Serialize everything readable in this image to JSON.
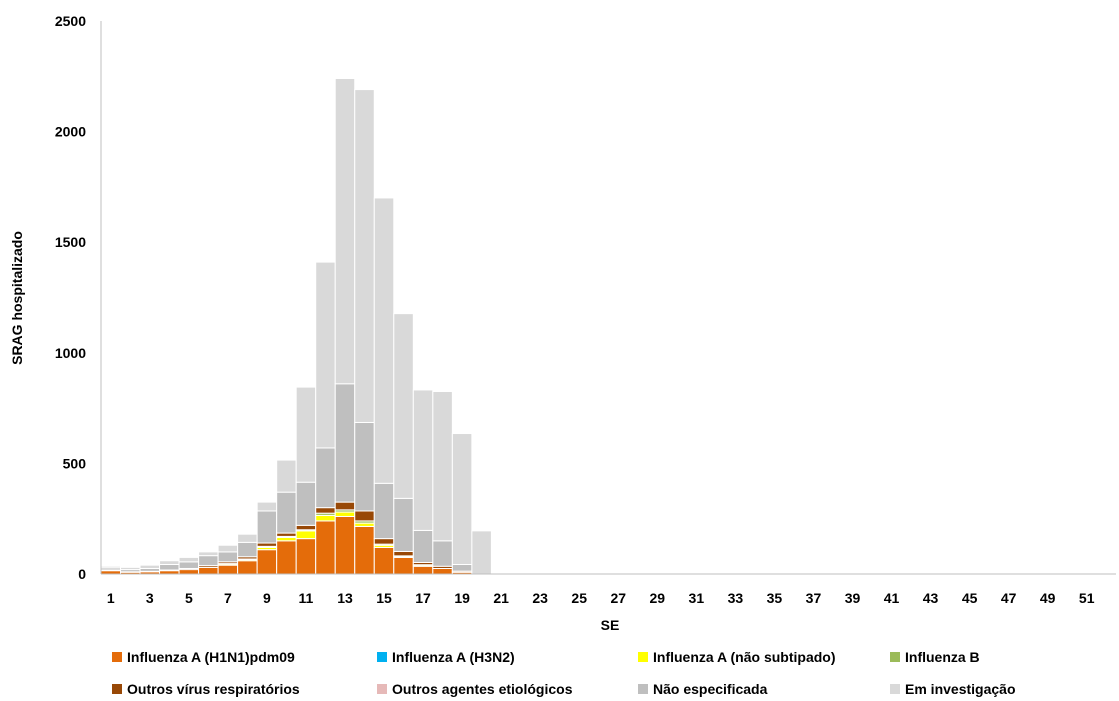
{
  "chart_data": {
    "type": "bar",
    "stacked": true,
    "xlabel": "SE",
    "ylabel": "SRAG hospitalizado",
    "ylim": [
      0,
      2500
    ],
    "yticks": [
      0,
      500,
      1000,
      1500,
      2000,
      2500
    ],
    "x": [
      1,
      2,
      3,
      4,
      5,
      6,
      7,
      8,
      9,
      10,
      11,
      12,
      13,
      14,
      15,
      16,
      17,
      18,
      19,
      20,
      21,
      22,
      23,
      24,
      25,
      26,
      27,
      28,
      29,
      30,
      31,
      32,
      33,
      34,
      35,
      36,
      37,
      38,
      39,
      40,
      41,
      42,
      43,
      44,
      45,
      46,
      47,
      48,
      49,
      50,
      51,
      52
    ],
    "xtick_labels": [
      "1",
      "3",
      "5",
      "7",
      "9",
      "11",
      "13",
      "15",
      "17",
      "19",
      "21",
      "23",
      "25",
      "27",
      "29",
      "31",
      "33",
      "35",
      "37",
      "39",
      "41",
      "43",
      "45",
      "47",
      "49",
      "51"
    ],
    "grid": false,
    "legend_position": "bottom",
    "colors": [
      "#E46C0A",
      "#00B0F0",
      "#FFFF00",
      "#9BBB59",
      "#984806",
      "#E6B9B8",
      "#BFBFBF",
      "#D9D9D9"
    ],
    "series": [
      {
        "name": "Influenza A (H1N1)pdm09",
        "values": [
          15,
          8,
          10,
          15,
          20,
          30,
          40,
          60,
          110,
          150,
          160,
          240,
          260,
          215,
          120,
          75,
          35,
          25,
          8,
          0,
          0,
          0,
          0,
          0,
          0,
          0,
          0,
          0,
          0,
          0,
          0,
          0,
          0,
          0,
          0,
          0,
          0,
          0,
          0,
          0,
          0,
          0,
          0,
          0,
          0,
          0,
          0,
          0,
          0,
          0,
          0,
          0
        ]
      },
      {
        "name": "Influenza A (H3N2)",
        "values": [
          0,
          0,
          0,
          0,
          0,
          0,
          0,
          0,
          0,
          0,
          0,
          0,
          0,
          0,
          0,
          0,
          0,
          0,
          0,
          0,
          0,
          0,
          0,
          0,
          0,
          0,
          0,
          0,
          0,
          0,
          0,
          0,
          0,
          0,
          0,
          0,
          0,
          0,
          0,
          0,
          0,
          0,
          0,
          0,
          0,
          0,
          0,
          0,
          0,
          0,
          0,
          0
        ]
      },
      {
        "name": "Influenza A (não subtipado)",
        "values": [
          0,
          0,
          0,
          0,
          0,
          0,
          5,
          5,
          10,
          15,
          35,
          25,
          20,
          15,
          10,
          5,
          5,
          0,
          0,
          0,
          0,
          0,
          0,
          0,
          0,
          0,
          0,
          0,
          0,
          0,
          0,
          0,
          0,
          0,
          0,
          0,
          0,
          0,
          0,
          0,
          0,
          0,
          0,
          0,
          0,
          0,
          0,
          0,
          0,
          0,
          0,
          0
        ]
      },
      {
        "name": "Influenza B",
        "values": [
          0,
          0,
          0,
          0,
          0,
          0,
          2,
          3,
          5,
          5,
          5,
          10,
          10,
          10,
          5,
          2,
          2,
          0,
          0,
          0,
          0,
          0,
          0,
          0,
          0,
          0,
          0,
          0,
          0,
          0,
          0,
          0,
          0,
          0,
          0,
          0,
          0,
          0,
          0,
          0,
          0,
          0,
          0,
          0,
          0,
          0,
          0,
          0,
          0,
          0,
          0,
          0
        ]
      },
      {
        "name": "Outros vírus respiratórios",
        "values": [
          3,
          2,
          2,
          3,
          5,
          8,
          8,
          10,
          15,
          15,
          20,
          25,
          35,
          45,
          25,
          20,
          10,
          10,
          5,
          0,
          0,
          0,
          0,
          0,
          0,
          0,
          0,
          0,
          0,
          0,
          0,
          0,
          0,
          0,
          0,
          0,
          0,
          0,
          0,
          0,
          0,
          0,
          0,
          0,
          0,
          0,
          0,
          0,
          0,
          0,
          0,
          0
        ]
      },
      {
        "name": "Outros agentes etiológicos",
        "values": [
          0,
          0,
          0,
          0,
          0,
          0,
          0,
          0,
          0,
          0,
          0,
          0,
          0,
          0,
          0,
          0,
          0,
          0,
          0,
          0,
          0,
          0,
          0,
          0,
          0,
          0,
          0,
          0,
          0,
          0,
          0,
          0,
          0,
          0,
          0,
          0,
          0,
          0,
          0,
          0,
          0,
          0,
          0,
          0,
          0,
          0,
          0,
          0,
          0,
          0,
          0,
          0
        ]
      },
      {
        "name": "Não especificada",
        "values": [
          10,
          10,
          13,
          25,
          30,
          45,
          45,
          65,
          145,
          185,
          195,
          270,
          535,
          400,
          250,
          240,
          145,
          115,
          30,
          0,
          0,
          0,
          0,
          0,
          0,
          0,
          0,
          0,
          0,
          0,
          0,
          0,
          0,
          0,
          0,
          0,
          0,
          0,
          0,
          0,
          0,
          0,
          0,
          0,
          0,
          0,
          0,
          0,
          0,
          0,
          0,
          0
        ]
      },
      {
        "name": "Em investigação",
        "values": [
          7,
          10,
          15,
          17,
          20,
          17,
          30,
          37,
          40,
          145,
          430,
          840,
          1380,
          1505,
          1290,
          835,
          635,
          675,
          592,
          195,
          0,
          0,
          0,
          0,
          0,
          0,
          0,
          0,
          0,
          0,
          0,
          0,
          0,
          0,
          0,
          0,
          0,
          0,
          0,
          0,
          0,
          0,
          0,
          0,
          0,
          0,
          0,
          0,
          0,
          0,
          0,
          0
        ]
      }
    ]
  }
}
